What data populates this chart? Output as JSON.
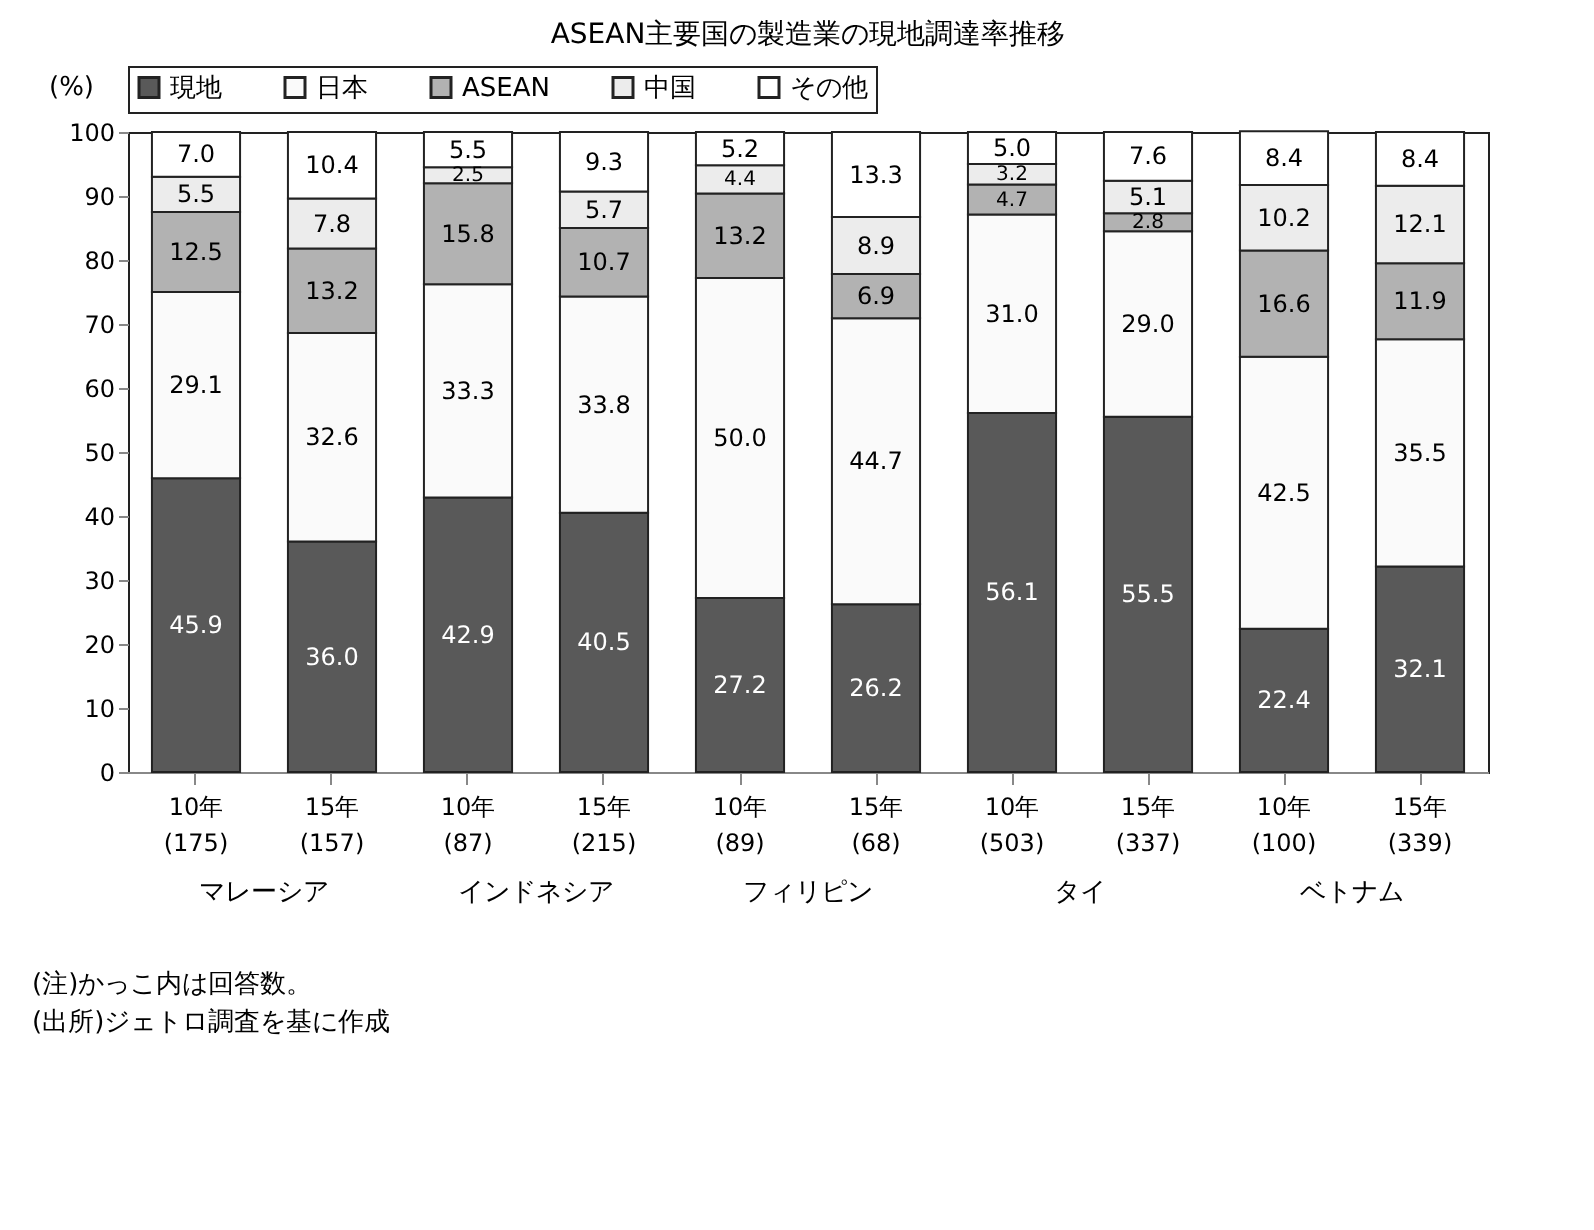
{
  "chart_data": {
    "type": "bar",
    "stacked": true,
    "title": "ASEAN主要国の製造業の現地調達率推移",
    "ylabel": "(%)",
    "categories": [
      "10年 (175)",
      "15年 (157)",
      "10年 (87)",
      "15年 (215)",
      "10年 (89)",
      "15年 (68)",
      "10年 (503)",
      "15年 (337)",
      "10年 (100)",
      "15年 (339)"
    ],
    "series": [
      {
        "name": "現地",
        "color": "#595959",
        "values": [
          45.9,
          36.0,
          42.9,
          40.5,
          27.2,
          26.2,
          56.1,
          55.5,
          22.4,
          32.1
        ],
        "value_labels": [
          "45.9",
          "36.0",
          "42.9",
          "40.5",
          "27.2",
          "26.2",
          "56.1",
          "55.5",
          "22.4",
          "32.1"
        ]
      },
      {
        "name": "日本",
        "color": "#fafafa",
        "values": [
          29.1,
          32.6,
          33.3,
          33.8,
          50.0,
          44.7,
          31.0,
          29.0,
          42.5,
          35.5
        ],
        "value_labels": [
          "29.1",
          "32.6",
          "33.3",
          "33.8",
          "50.0",
          "44.7",
          "31.0",
          "29.0",
          "42.5",
          "35.5"
        ]
      },
      {
        "name": "ASEAN",
        "color": "#b2b2b2",
        "values": [
          12.5,
          13.2,
          15.8,
          10.7,
          13.2,
          6.9,
          4.7,
          2.8,
          16.6,
          11.9
        ],
        "value_labels": [
          "12.5",
          "13.2",
          "15.8",
          "10.7",
          "13.2",
          "6.9",
          "4.7",
          "2.8",
          "16.6",
          "11.9"
        ]
      },
      {
        "name": "中国",
        "color": "#ececec",
        "values": [
          5.5,
          7.8,
          2.5,
          5.7,
          4.4,
          8.9,
          3.2,
          5.1,
          10.2,
          12.1
        ],
        "value_labels": [
          "5.5",
          "7.8",
          "2.5",
          "5.7",
          "4.4",
          "8.9",
          "3.2",
          "5.1",
          "10.2",
          "12.1"
        ]
      },
      {
        "name": "その他",
        "color": "#ffffff",
        "values": [
          7.0,
          10.4,
          5.5,
          9.3,
          5.2,
          13.3,
          5.0,
          7.6,
          8.4,
          8.4
        ],
        "value_labels": [
          "7.0",
          "10.4",
          "5.5",
          "9.3",
          "5.2",
          "13.3",
          "5.0",
          "7.6",
          "8.4",
          "8.4"
        ]
      }
    ],
    "ylim": [
      0,
      100
    ],
    "yticks": [
      0,
      10,
      20,
      30,
      40,
      50,
      60,
      70,
      80,
      90,
      100
    ],
    "legend": "top",
    "annotations": [
      "マレーシア",
      "インドネシア",
      "フィリピン",
      "タイ",
      "ベトナム",
      "(注)かっこ内は回答数。",
      "(出所)ジェトロ調査を基に作成"
    ]
  }
}
